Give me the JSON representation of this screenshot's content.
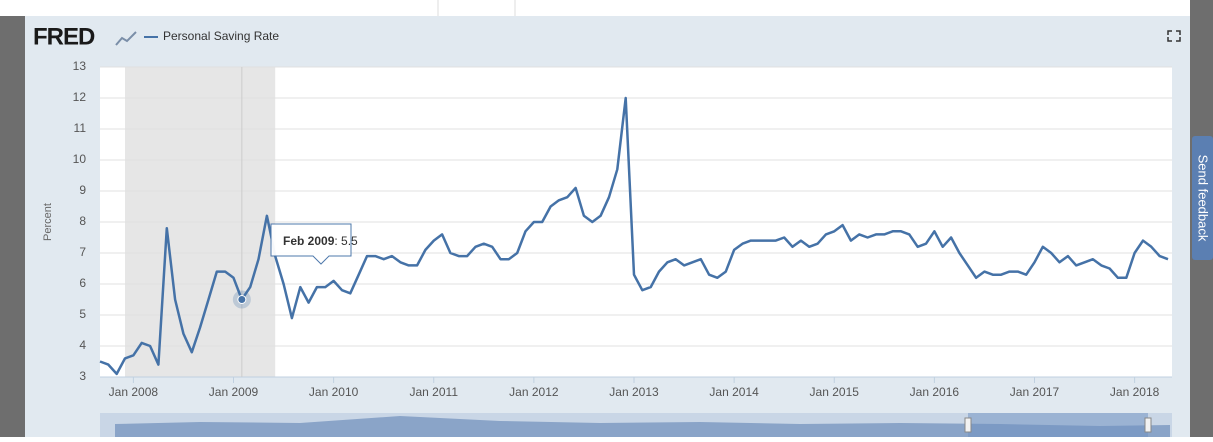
{
  "header": {
    "logo": "FRED",
    "feedback": "Send feedback"
  },
  "chart_data": {
    "type": "line",
    "ylabel": "Percent",
    "x": [
      "Sep 2007",
      "Oct 2007",
      "Nov 2007",
      "Dec 2007",
      "Jan 2008",
      "Feb 2008",
      "Mar 2008",
      "Apr 2008",
      "May 2008",
      "Jun 2008",
      "Jul 2008",
      "Aug 2008",
      "Sep 2008",
      "Oct 2008",
      "Nov 2008",
      "Dec 2008",
      "Jan 2009",
      "Feb 2009",
      "Mar 2009",
      "Apr 2009",
      "May 2009",
      "Jun 2009",
      "Jul 2009",
      "Aug 2009",
      "Sep 2009",
      "Oct 2009",
      "Nov 2009",
      "Dec 2009",
      "Jan 2010",
      "Feb 2010",
      "Mar 2010",
      "Apr 2010",
      "May 2010",
      "Jun 2010",
      "Jul 2010",
      "Aug 2010",
      "Sep 2010",
      "Oct 2010",
      "Nov 2010",
      "Dec 2010",
      "Jan 2011",
      "Feb 2011",
      "Mar 2011",
      "Apr 2011",
      "May 2011",
      "Jun 2011",
      "Jul 2011",
      "Aug 2011",
      "Sep 2011",
      "Oct 2011",
      "Nov 2011",
      "Dec 2011",
      "Jan 2012",
      "Feb 2012",
      "Mar 2012",
      "Apr 2012",
      "May 2012",
      "Jun 2012",
      "Jul 2012",
      "Aug 2012",
      "Sep 2012",
      "Oct 2012",
      "Nov 2012",
      "Dec 2012",
      "Jan 2013",
      "Feb 2013",
      "Mar 2013",
      "Apr 2013",
      "May 2013",
      "Jun 2013",
      "Jul 2013",
      "Aug 2013",
      "Sep 2013",
      "Oct 2013",
      "Nov 2013",
      "Dec 2013",
      "Jan 2014",
      "Feb 2014",
      "Mar 2014",
      "Apr 2014",
      "May 2014",
      "Jun 2014",
      "Jul 2014",
      "Aug 2014",
      "Sep 2014",
      "Oct 2014",
      "Nov 2014",
      "Dec 2014",
      "Jan 2015",
      "Feb 2015",
      "Mar 2015",
      "Apr 2015",
      "May 2015",
      "Jun 2015",
      "Jul 2015",
      "Aug 2015",
      "Sep 2015",
      "Oct 2015",
      "Nov 2015",
      "Dec 2015",
      "Jan 2016",
      "Feb 2016",
      "Mar 2016",
      "Apr 2016",
      "May 2016",
      "Jun 2016",
      "Jul 2016",
      "Aug 2016",
      "Sep 2016",
      "Oct 2016",
      "Nov 2016",
      "Dec 2016",
      "Jan 2017",
      "Feb 2017",
      "Mar 2017",
      "Apr 2017",
      "May 2017",
      "Jun 2017",
      "Jul 2017",
      "Aug 2017",
      "Sep 2017",
      "Oct 2017",
      "Nov 2017",
      "Dec 2017",
      "Jan 2018",
      "Feb 2018",
      "Mar 2018",
      "Apr 2018",
      "May 2018"
    ],
    "series": [
      {
        "name": "Personal Saving Rate",
        "color": "#4572a7",
        "values": [
          3.5,
          3.4,
          3.1,
          3.6,
          3.7,
          4.1,
          4.0,
          3.4,
          7.8,
          5.5,
          4.4,
          3.8,
          4.6,
          5.5,
          6.4,
          6.4,
          6.2,
          5.5,
          5.9,
          6.8,
          8.2,
          6.9,
          6.0,
          4.9,
          5.9,
          5.4,
          5.9,
          5.9,
          6.1,
          5.8,
          5.7,
          6.3,
          6.9,
          6.9,
          6.8,
          6.9,
          6.7,
          6.6,
          6.6,
          7.1,
          7.4,
          7.6,
          7.0,
          6.9,
          6.9,
          7.2,
          7.3,
          7.2,
          6.8,
          6.8,
          7.0,
          7.7,
          8.0,
          8.0,
          8.5,
          8.7,
          8.8,
          9.1,
          8.2,
          8.0,
          8.2,
          8.8,
          9.7,
          12.0,
          6.3,
          5.8,
          5.9,
          6.4,
          6.7,
          6.8,
          6.6,
          6.7,
          6.8,
          6.3,
          6.2,
          6.4,
          7.1,
          7.3,
          7.4,
          7.4,
          7.4,
          7.4,
          7.5,
          7.2,
          7.4,
          7.2,
          7.3,
          7.6,
          7.7,
          7.9,
          7.4,
          7.6,
          7.5,
          7.6,
          7.6,
          7.7,
          7.7,
          7.6,
          7.2,
          7.3,
          7.7,
          7.2,
          7.5,
          7.0,
          6.6,
          6.2,
          6.4,
          6.3,
          6.3,
          6.4,
          6.4,
          6.3,
          6.7,
          7.2,
          7.0,
          6.7,
          6.9,
          6.6,
          6.7,
          6.8,
          6.6,
          6.5,
          6.2,
          6.2,
          7.0,
          7.4,
          7.2,
          6.9,
          6.8
        ]
      }
    ],
    "ylim": [
      3,
      13
    ],
    "yticks": [
      3,
      4,
      5,
      6,
      7,
      8,
      9,
      10,
      11,
      12,
      13
    ],
    "xticks": [
      "Jan 2008",
      "Jan 2009",
      "Jan 2010",
      "Jan 2011",
      "Jan 2012",
      "Jan 2013",
      "Jan 2014",
      "Jan 2015",
      "Jan 2016",
      "Jan 2017",
      "Jan 2018"
    ],
    "grid": true,
    "shaded": [
      "Dec 2007",
      "Jun 2009"
    ],
    "highlight": "Feb 2009"
  }
}
